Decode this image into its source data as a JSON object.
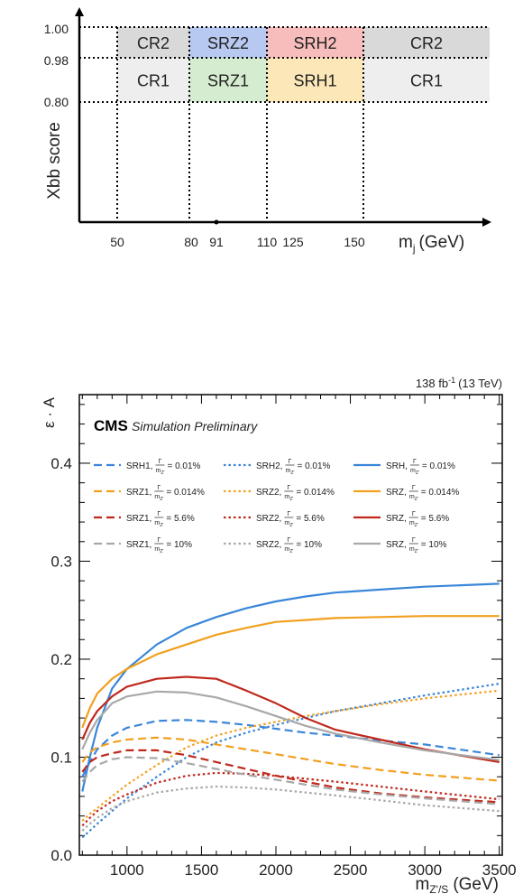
{
  "chart_data": [
    {
      "type": "table",
      "ylabel": "Xbb score",
      "xlabel_main": "m",
      "xlabel_sub": "j",
      "xlabel_unit": "(GeV)",
      "x_ticks": [
        "50",
        "80",
        "91",
        "110",
        "125",
        "150"
      ],
      "y_ticks": [
        "1.00",
        "0.98",
        "0.80"
      ],
      "regions": [
        {
          "label": "CR2",
          "x": [
            50,
            80
          ],
          "y": [
            0.98,
            1.0
          ],
          "color": "#d9d9d9"
        },
        {
          "label": "SRZ2",
          "x": [
            80,
            110
          ],
          "y": [
            0.98,
            1.0
          ],
          "color": "#b7c9f0"
        },
        {
          "label": "SRH2",
          "x": [
            110,
            150
          ],
          "y": [
            0.98,
            1.0
          ],
          "color": "#f7bcbc"
        },
        {
          "label": "CR2",
          "x": [
            150,
            9999
          ],
          "y": [
            0.98,
            1.0
          ],
          "color": "#d9d9d9"
        },
        {
          "label": "CR1",
          "x": [
            50,
            80
          ],
          "y": [
            0.8,
            0.98
          ],
          "color": "#eeeeee"
        },
        {
          "label": "SRZ1",
          "x": [
            80,
            110
          ],
          "y": [
            0.8,
            0.98
          ],
          "color": "#d6ecd0"
        },
        {
          "label": "SRH1",
          "x": [
            110,
            150
          ],
          "y": [
            0.8,
            0.98
          ],
          "color": "#fbe7b8"
        },
        {
          "label": "CR1",
          "x": [
            150,
            9999
          ],
          "y": [
            0.8,
            0.98
          ],
          "color": "#eeeeee"
        }
      ]
    },
    {
      "type": "line",
      "lumi_text": "138 fb",
      "lumi_exp": "-1",
      "lumi_energy": "(13 TeV)",
      "cms_label": "CMS",
      "cms_sublabel": "Simulation Preliminary",
      "ylabel": "ε · A",
      "xlabel_main": "m",
      "xlabel_sub": "Z'/S",
      "xlabel_unit": "(GeV)",
      "xlim": [
        680,
        3520
      ],
      "ylim": [
        0,
        0.47
      ],
      "x_ticks": [
        1000,
        1500,
        2000,
        2500,
        3000,
        3500
      ],
      "y_ticks": [
        0.0,
        0.1,
        0.2,
        0.3,
        0.4
      ],
      "x": [
        700,
        750,
        800,
        900,
        1000,
        1200,
        1400,
        1600,
        1800,
        2000,
        2200,
        2400,
        2700,
        3000,
        3500
      ],
      "series": [
        {
          "name": "SRH1, Γ/m = 0.01%",
          "color": "#3a86d8",
          "dash": "dash",
          "values": [
            0.08,
            0.095,
            0.108,
            0.122,
            0.13,
            0.137,
            0.138,
            0.136,
            0.133,
            0.129,
            0.125,
            0.122,
            0.117,
            0.113,
            0.102
          ]
        },
        {
          "name": "SRH2, Γ/m = 0.01%",
          "color": "#3a86d8",
          "dash": "dot",
          "values": [
            0.018,
            0.025,
            0.032,
            0.045,
            0.058,
            0.08,
            0.1,
            0.115,
            0.125,
            0.133,
            0.14,
            0.147,
            0.155,
            0.163,
            0.175
          ]
        },
        {
          "name": "SRH, Γ/m = 0.01%",
          "color": "#3a86d8",
          "dash": "solid",
          "values": [
            0.065,
            0.1,
            0.13,
            0.17,
            0.19,
            0.215,
            0.232,
            0.243,
            0.252,
            0.259,
            0.264,
            0.268,
            0.271,
            0.274,
            0.277
          ]
        },
        {
          "name": "SRZ1, Γ/m = 0.014%",
          "color": "#f2a01f",
          "dash": "dash",
          "values": [
            0.095,
            0.105,
            0.11,
            0.115,
            0.118,
            0.12,
            0.118,
            0.113,
            0.108,
            0.103,
            0.098,
            0.093,
            0.087,
            0.082,
            0.076
          ]
        },
        {
          "name": "SRZ2, Γ/m = 0.014%",
          "color": "#f2a01f",
          "dash": "dot",
          "values": [
            0.035,
            0.042,
            0.048,
            0.06,
            0.072,
            0.092,
            0.11,
            0.122,
            0.13,
            0.136,
            0.142,
            0.147,
            0.154,
            0.16,
            0.168
          ]
        },
        {
          "name": "SRZ, Γ/m = 0.014%",
          "color": "#f2a01f",
          "dash": "solid",
          "values": [
            0.13,
            0.15,
            0.165,
            0.18,
            0.19,
            0.205,
            0.215,
            0.225,
            0.232,
            0.238,
            0.24,
            0.242,
            0.243,
            0.244,
            0.244
          ]
        },
        {
          "name": "SRZ1, Γ/m = 5.6%",
          "color": "#c0281c",
          "dash": "dash",
          "values": [
            0.085,
            0.095,
            0.1,
            0.104,
            0.107,
            0.107,
            0.102,
            0.095,
            0.088,
            0.081,
            0.075,
            0.069,
            0.063,
            0.059,
            0.054
          ]
        },
        {
          "name": "SRZ2, Γ/m = 5.6%",
          "color": "#c0281c",
          "dash": "dot",
          "values": [
            0.03,
            0.038,
            0.045,
            0.055,
            0.062,
            0.074,
            0.081,
            0.084,
            0.083,
            0.081,
            0.078,
            0.075,
            0.07,
            0.065,
            0.057
          ]
        },
        {
          "name": "SRZ, Γ/m = 5.6%",
          "color": "#c0281c",
          "dash": "solid",
          "values": [
            0.118,
            0.135,
            0.147,
            0.162,
            0.172,
            0.18,
            0.182,
            0.18,
            0.168,
            0.155,
            0.14,
            0.128,
            0.118,
            0.108,
            0.095
          ]
        },
        {
          "name": "SRZ1, Γ/m = 10%",
          "color": "#a8a8a8",
          "dash": "dash",
          "values": [
            0.075,
            0.085,
            0.092,
            0.098,
            0.1,
            0.099,
            0.094,
            0.088,
            0.082,
            0.077,
            0.072,
            0.067,
            0.062,
            0.058,
            0.052
          ]
        },
        {
          "name": "SRZ2, Γ/m = 10%",
          "color": "#a8a8a8",
          "dash": "dot",
          "values": [
            0.025,
            0.032,
            0.038,
            0.048,
            0.055,
            0.064,
            0.068,
            0.07,
            0.069,
            0.067,
            0.064,
            0.061,
            0.056,
            0.051,
            0.045
          ]
        },
        {
          "name": "SRZ, Γ/m = 10%",
          "color": "#a8a8a8",
          "dash": "solid",
          "values": [
            0.108,
            0.125,
            0.138,
            0.155,
            0.162,
            0.167,
            0.166,
            0.161,
            0.152,
            0.142,
            0.132,
            0.124,
            0.115,
            0.107,
            0.097
          ]
        }
      ],
      "legend_labels": [
        [
          "SRH1,",
          "= 0.01%"
        ],
        [
          "SRH2,",
          "= 0.01%"
        ],
        [
          "SRH,",
          "= 0.01%"
        ],
        [
          "SRZ1,",
          "= 0.014%"
        ],
        [
          "SRZ2,",
          "= 0.014%"
        ],
        [
          "SRZ,",
          "= 0.014%"
        ],
        [
          "SRZ1,",
          "= 5.6%"
        ],
        [
          "SRZ2,",
          "= 5.6%"
        ],
        [
          "SRZ,",
          "= 5.6%"
        ],
        [
          "SRZ1,",
          "= 10%"
        ],
        [
          "SRZ2,",
          "= 10%"
        ],
        [
          "SRZ,",
          "= 10%"
        ]
      ],
      "legend_frac_num": "Γ",
      "legend_frac_den": "m",
      "legend_frac_den_sub": "Z'"
    }
  ]
}
